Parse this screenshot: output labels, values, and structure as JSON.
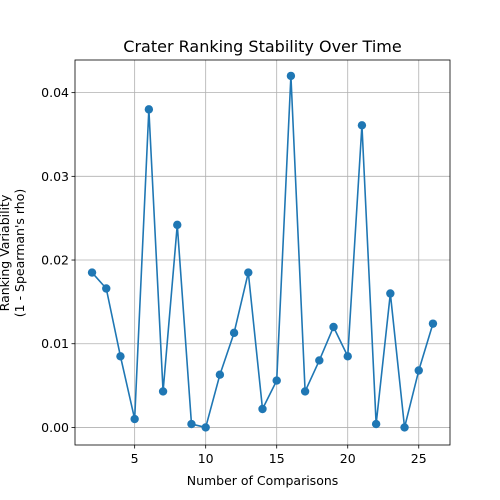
{
  "chart_data": {
    "type": "line",
    "title": "Crater Ranking Stability Over Time",
    "xlabel": "Number of Comparisons",
    "ylabel": [
      "Ranking Variability",
      "(1 - Spearman's rho)"
    ],
    "xlim": [
      0.8,
      27.2
    ],
    "ylim": [
      -0.0021,
      0.0439
    ],
    "xticks": [
      5,
      10,
      15,
      20,
      25
    ],
    "yticks": [
      0.0,
      0.01,
      0.02,
      0.03,
      0.04
    ],
    "ytick_labels": [
      "0.00",
      "0.01",
      "0.02",
      "0.03",
      "0.04"
    ],
    "grid": true,
    "series": [
      {
        "color": "#1f77b4",
        "marker": "circle",
        "x": [
          2,
          3,
          4,
          5,
          6,
          7,
          8,
          9,
          10,
          11,
          12,
          13,
          14,
          15,
          16,
          17,
          18,
          19,
          20,
          21,
          22,
          23,
          24,
          25,
          26
        ],
        "values": [
          0.0185,
          0.0166,
          0.0085,
          0.001,
          0.038,
          0.0043,
          0.0242,
          0.0004,
          0.0,
          0.0063,
          0.0113,
          0.0185,
          0.0022,
          0.0056,
          0.042,
          0.0043,
          0.008,
          0.012,
          0.0085,
          0.0361,
          0.0004,
          0.016,
          0.0,
          0.0068,
          0.0124
        ]
      }
    ]
  }
}
